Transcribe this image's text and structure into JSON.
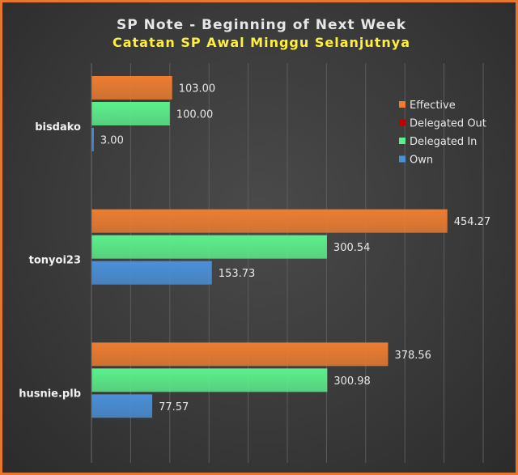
{
  "chart_data": {
    "type": "bar",
    "orientation": "horizontal",
    "title": "SP Note - Beginning of Next Week",
    "subtitle": "Catatan SP Awal Minggu Selanjutnya",
    "categories": [
      "bisdako",
      "tonyoi23",
      "husnie.plb"
    ],
    "series": [
      {
        "name": "Effective",
        "color": "#ed7d31",
        "values": [
          103.0,
          454.27,
          378.56
        ]
      },
      {
        "name": "Delegated Out",
        "color": "#c00000",
        "values": [
          0,
          0,
          0
        ]
      },
      {
        "name": "Delegated In",
        "color": "#5cf08c",
        "values": [
          100.0,
          300.54,
          300.98
        ]
      },
      {
        "name": "Own",
        "color": "#4a90d9",
        "values": [
          3.0,
          153.73,
          77.57
        ]
      }
    ],
    "value_labels": [
      [
        "103.00",
        "454.27",
        "378.56"
      ],
      [
        "",
        "",
        ""
      ],
      [
        "100.00",
        "300.54",
        "300.98"
      ],
      [
        "3.00",
        "153.73",
        "77.57"
      ]
    ],
    "xlim": [
      0,
      500
    ],
    "grid": true,
    "legend": "top-right",
    "border_color": "#e8772e"
  }
}
